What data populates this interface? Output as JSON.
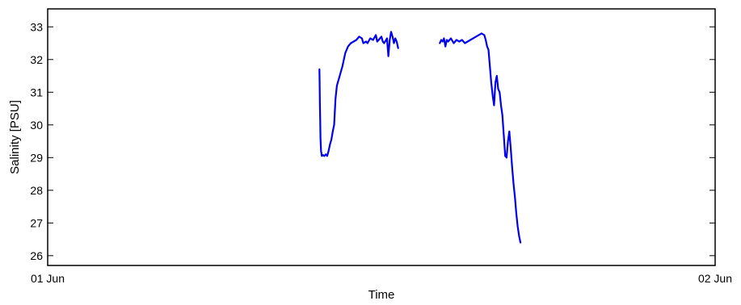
{
  "chart_data": {
    "type": "line",
    "xlabel": "Time",
    "ylabel": "Salinity [PSU]",
    "xlim": [
      0,
      24
    ],
    "ylim": [
      25.7,
      33.55
    ],
    "x_unit": "hours after 01 Jun",
    "xticks": [
      {
        "value": 0,
        "label": "01 Jun"
      },
      {
        "value": 24,
        "label": "02 Jun"
      }
    ],
    "yticks": [
      26,
      27,
      28,
      29,
      30,
      31,
      32,
      33
    ],
    "grid": false,
    "legend": "none",
    "color": "#0000ee",
    "series": [
      {
        "name": "",
        "points": [
          [
            9.77,
            31.7
          ],
          [
            9.78,
            31.2
          ],
          [
            9.79,
            30.6
          ],
          [
            9.8,
            30.1
          ],
          [
            9.81,
            29.6
          ],
          [
            9.83,
            29.2
          ],
          [
            9.86,
            29.05
          ],
          [
            9.9,
            29.08
          ],
          [
            9.95,
            29.05
          ],
          [
            10.0,
            29.1
          ],
          [
            10.05,
            29.05
          ],
          [
            10.1,
            29.2
          ],
          [
            10.15,
            29.4
          ],
          [
            10.2,
            29.55
          ],
          [
            10.25,
            29.8
          ],
          [
            10.3,
            30.0
          ],
          [
            10.35,
            30.8
          ],
          [
            10.4,
            31.2
          ],
          [
            10.5,
            31.5
          ],
          [
            10.6,
            31.8
          ],
          [
            10.7,
            32.2
          ],
          [
            10.8,
            32.4
          ],
          [
            10.9,
            32.5
          ],
          [
            11.0,
            32.55
          ],
          [
            11.1,
            32.6
          ],
          [
            11.2,
            32.7
          ],
          [
            11.3,
            32.65
          ],
          [
            11.35,
            32.5
          ],
          [
            11.45,
            32.55
          ],
          [
            11.5,
            32.5
          ],
          [
            11.6,
            32.65
          ],
          [
            11.7,
            32.6
          ],
          [
            11.8,
            32.75
          ],
          [
            11.85,
            32.55
          ],
          [
            11.9,
            32.6
          ],
          [
            12.0,
            32.7
          ],
          [
            12.05,
            32.55
          ],
          [
            12.1,
            32.5
          ],
          [
            12.2,
            32.65
          ],
          [
            12.25,
            32.1
          ],
          [
            12.3,
            32.6
          ],
          [
            12.35,
            32.85
          ],
          [
            12.4,
            32.7
          ],
          [
            12.45,
            32.5
          ],
          [
            12.5,
            32.65
          ],
          [
            12.55,
            32.55
          ],
          [
            12.6,
            32.35
          ]
        ]
      },
      {
        "name": "",
        "points": [
          [
            14.1,
            32.5
          ],
          [
            14.15,
            32.6
          ],
          [
            14.2,
            32.55
          ],
          [
            14.25,
            32.65
          ],
          [
            14.3,
            32.4
          ],
          [
            14.35,
            32.6
          ],
          [
            14.4,
            32.55
          ],
          [
            14.5,
            32.65
          ],
          [
            14.6,
            32.5
          ],
          [
            14.7,
            32.6
          ],
          [
            14.8,
            32.55
          ],
          [
            14.9,
            32.6
          ],
          [
            15.0,
            32.5
          ],
          [
            15.1,
            32.55
          ],
          [
            15.2,
            32.6
          ],
          [
            15.3,
            32.65
          ],
          [
            15.4,
            32.7
          ],
          [
            15.5,
            32.75
          ],
          [
            15.6,
            32.8
          ],
          [
            15.7,
            32.75
          ],
          [
            15.75,
            32.6
          ],
          [
            15.8,
            32.4
          ],
          [
            15.85,
            32.3
          ],
          [
            15.9,
            31.8
          ],
          [
            15.95,
            31.3
          ],
          [
            16.0,
            30.9
          ],
          [
            16.05,
            30.6
          ],
          [
            16.1,
            31.3
          ],
          [
            16.15,
            31.5
          ],
          [
            16.2,
            31.1
          ],
          [
            16.25,
            31.0
          ],
          [
            16.3,
            30.6
          ],
          [
            16.35,
            30.3
          ],
          [
            16.4,
            29.7
          ],
          [
            16.45,
            29.05
          ],
          [
            16.5,
            29.0
          ],
          [
            16.55,
            29.5
          ],
          [
            16.6,
            29.8
          ],
          [
            16.65,
            29.3
          ],
          [
            16.7,
            28.7
          ],
          [
            16.75,
            28.2
          ],
          [
            16.8,
            27.8
          ],
          [
            16.85,
            27.3
          ],
          [
            16.9,
            26.9
          ],
          [
            16.95,
            26.6
          ],
          [
            17.0,
            26.4
          ]
        ]
      }
    ]
  }
}
